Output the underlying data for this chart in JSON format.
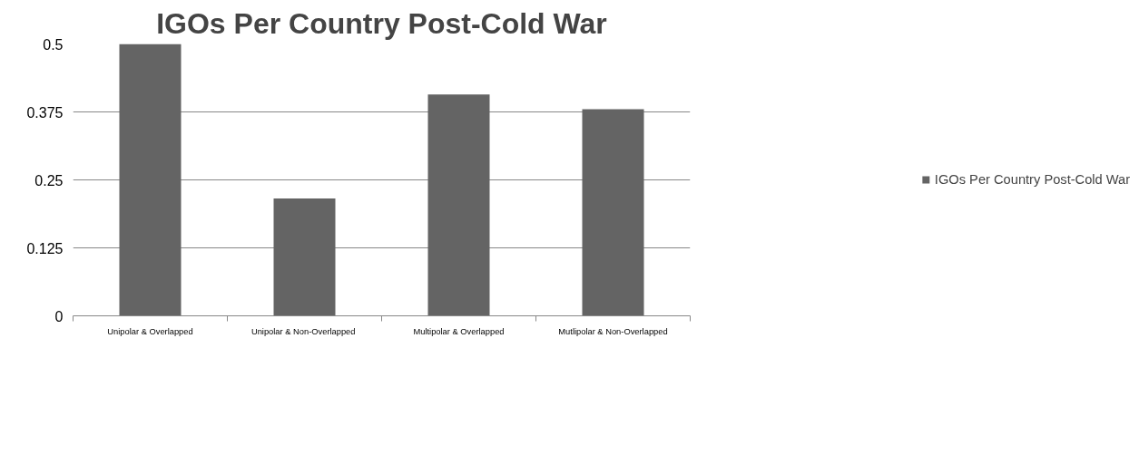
{
  "chart_data": {
    "type": "bar",
    "title": "IGOs Per Country Post-Cold War",
    "categories": [
      "Unipolar & Overlapped",
      "Unipolar &  Non-Overlapped",
      "Multipolar & Overlapped",
      "Mutlipolar & Non-Overlapped"
    ],
    "series": [
      {
        "name": "IGOs Per Country Post-Cold War",
        "color": "#646464",
        "values": [
          0.5,
          0.216,
          0.407,
          0.38
        ]
      }
    ],
    "ylim": [
      0,
      0.5
    ],
    "yticks": [
      0,
      0.125,
      0.25,
      0.375,
      0.5
    ],
    "grid": "y",
    "legend": "right"
  }
}
